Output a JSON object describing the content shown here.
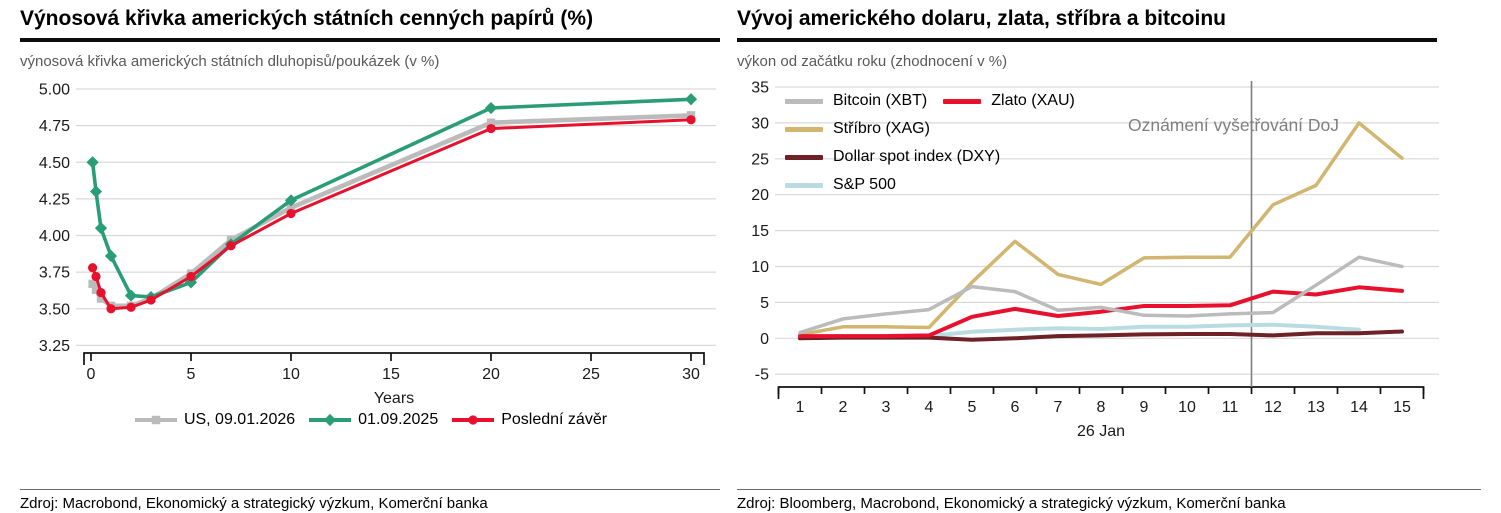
{
  "sources": [
    "Zdroj: Macrobond, Ekonomický a strategický výzkum, Komerční banka",
    "Zdroj: Bloomberg, Macrobond, Ekonomický a strategický výzkum, Komerční banka"
  ],
  "chart_data": [
    {
      "type": "line",
      "title": "Výnosová křivka amerických státních cenných papírů (%)",
      "subtitle": "výnosová křivka amerických státních dluhopisů/poukázek (v %)",
      "xlabel": "Years",
      "x": [
        0.08,
        0.25,
        0.5,
        1,
        2,
        3,
        5,
        7,
        10,
        20,
        30
      ],
      "x_ticks": [
        0,
        5,
        10,
        15,
        20,
        25,
        30
      ],
      "ylim": [
        3.25,
        5.0
      ],
      "y_ticks": [
        5.0,
        4.75,
        4.5,
        4.25,
        4.0,
        3.75,
        3.5,
        3.25
      ],
      "y_tick_labels": [
        "5.00",
        "4.75",
        "4.50",
        "4.25",
        "4.00",
        "3.75",
        "3.50",
        "3.25"
      ],
      "grid": true,
      "legend_position": "bottom",
      "series": [
        {
          "name": "US, 09.01.2026",
          "color": "#bbbbbb",
          "marker": "square",
          "values": [
            3.67,
            3.63,
            3.57,
            3.52,
            3.52,
            3.57,
            3.74,
            3.97,
            4.19,
            4.77,
            4.82
          ]
        },
        {
          "name": "01.09.2025",
          "color": "#2a9d77",
          "marker": "diamond",
          "values": [
            4.5,
            4.3,
            4.05,
            3.86,
            3.59,
            3.58,
            3.68,
            3.94,
            4.24,
            4.87,
            4.93
          ]
        },
        {
          "name": "Poslední závěr",
          "color": "#e8112d",
          "marker": "circle",
          "values": [
            3.78,
            3.72,
            3.61,
            3.5,
            3.51,
            3.56,
            3.72,
            3.93,
            4.15,
            4.73,
            4.79
          ]
        }
      ]
    },
    {
      "type": "line",
      "title": "Vývoj amerického dolaru, zlata, stříbra a bitcoinu",
      "subtitle": "výkon od začátku roku (zhodnocení v  %)",
      "xlabel": "26 Jan",
      "x": [
        1,
        2,
        3,
        4,
        5,
        6,
        7,
        8,
        9,
        10,
        11,
        12,
        13,
        14,
        15
      ],
      "x_ticks": [
        1,
        2,
        3,
        4,
        5,
        6,
        7,
        8,
        9,
        10,
        11,
        12,
        13,
        14,
        15
      ],
      "ylim": [
        -5,
        35
      ],
      "y_ticks": [
        35,
        30,
        25,
        20,
        15,
        10,
        5,
        0,
        -5
      ],
      "y_tick_labels": [
        "35",
        "30",
        "25",
        "20",
        "15",
        "10",
        "5",
        "0",
        "-5"
      ],
      "grid": true,
      "legend_position": "top-left",
      "annotation": {
        "text": "Oznámení vyšetřování DoJ",
        "x": 11.5
      },
      "series": [
        {
          "name": "Bitcoin (XBT)",
          "color": "#bbbbbb",
          "values": [
            0.8,
            2.7,
            3.4,
            4.0,
            7.2,
            6.5,
            3.9,
            4.3,
            3.2,
            3.1,
            3.4,
            3.6,
            7.4,
            11.3,
            10.0
          ]
        },
        {
          "name": "Zlato (XAU)",
          "color": "#e8112d",
          "values": [
            0.3,
            0.3,
            0.3,
            0.4,
            3.0,
            4.1,
            3.1,
            3.7,
            4.5,
            4.5,
            4.6,
            6.5,
            6.1,
            7.1,
            6.6
          ]
        },
        {
          "name": "Stříbro (XAG)",
          "color": "#d2b670",
          "values": [
            0.5,
            1.6,
            1.6,
            1.5,
            7.8,
            13.5,
            8.9,
            7.5,
            11.2,
            11.3,
            11.3,
            18.6,
            21.3,
            30.0,
            25.1
          ]
        },
        {
          "name": "Dollar spot index (DXY)",
          "color": "#6e2127",
          "values": [
            0.0,
            0.1,
            0.1,
            0.1,
            -0.2,
            0.0,
            0.3,
            0.4,
            0.55,
            0.6,
            0.6,
            0.4,
            0.7,
            0.7,
            0.95
          ]
        },
        {
          "name": "S&P 500",
          "color": "#b9dce2",
          "values": [
            0.1,
            0.3,
            0.3,
            0.3,
            0.9,
            1.2,
            1.4,
            1.3,
            1.6,
            1.6,
            1.8,
            1.9,
            1.6,
            1.2,
            null
          ]
        }
      ]
    }
  ]
}
